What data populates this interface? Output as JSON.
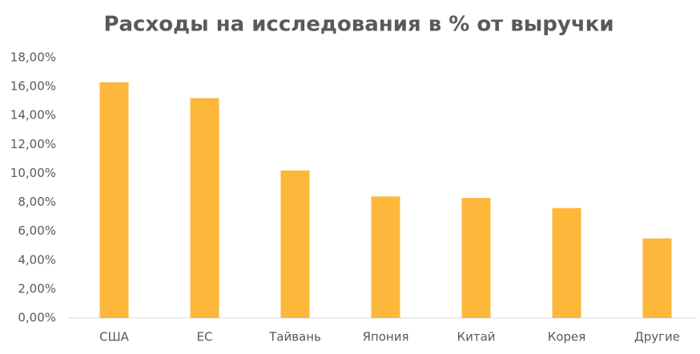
{
  "chart_data": {
    "type": "bar",
    "title": "Расходы на исследования в % от выручки",
    "categories": [
      "США",
      "ЕС",
      "Тайвань",
      "Япония",
      "Китай",
      "Корея",
      "Другие"
    ],
    "values": [
      16.3,
      15.2,
      10.2,
      8.4,
      8.3,
      7.6,
      5.5
    ],
    "color": "#fdb73b",
    "ylim": [
      0,
      18
    ],
    "yticks": [
      {
        "value": 0,
        "label": "0,00%"
      },
      {
        "value": 2,
        "label": "2,00%"
      },
      {
        "value": 4,
        "label": "4,00%"
      },
      {
        "value": 6,
        "label": "6,00%"
      },
      {
        "value": 8,
        "label": "8,00%"
      },
      {
        "value": 10,
        "label": "10,00%"
      },
      {
        "value": 12,
        "label": "12,00%"
      },
      {
        "value": 14,
        "label": "14,00%"
      },
      {
        "value": 16,
        "label": "16,00%"
      },
      {
        "value": 18,
        "label": "18,00%"
      }
    ],
    "grid": false
  }
}
